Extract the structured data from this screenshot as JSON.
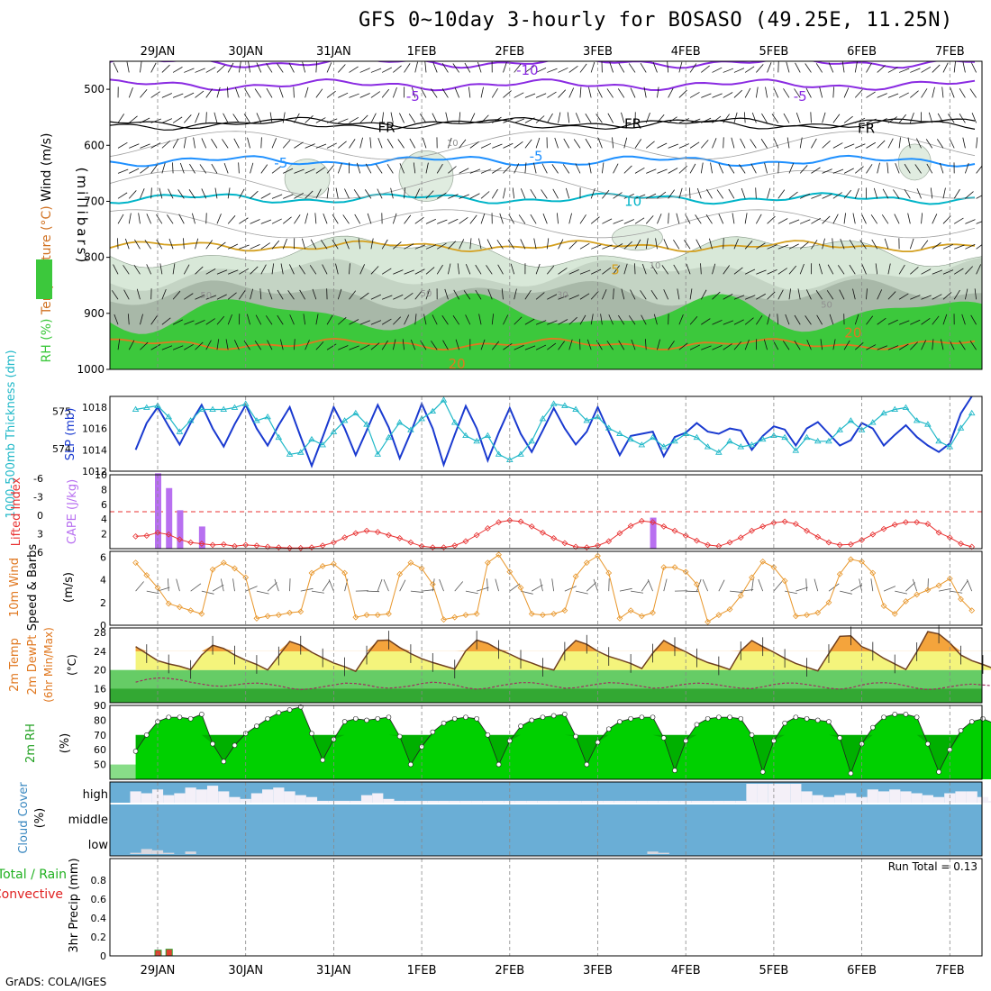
{
  "title": "GFS 0~10day 3-hourly for BOSASO (49.25E, 11.25N)",
  "credit": "GrADS: COLA/IGES",
  "colors": {
    "rh_green": "#3cc83c",
    "rh_light": "#d8e8d8",
    "rh_mid": "#c4d4c4",
    "rh_dark": "#a8b8a8",
    "temp_purple": "#8a2be2",
    "temp_black": "#000000",
    "temp_blue": "#1e90ff",
    "temp_cyan": "#00b4c8",
    "temp_gold": "#d4a020",
    "temp_orange": "#e07820",
    "temp_magenta": "#e0108c",
    "slp": "#1a3ad0",
    "thick": "#20b8c8",
    "lifted": "#e83030",
    "cape": "#b870f0",
    "wind": "#e8962a",
    "temp_fill_orange": "#f4a43c",
    "temp_fill_yellow": "#f4f47c",
    "dewpt_fill": "#40c840",
    "rh2m": "#00d000",
    "cloud": "#6aaed6",
    "cloud_white": "#f4f0f8"
  },
  "chart_data": {
    "type": "meteogram",
    "x_dates": [
      "29JAN",
      "30JAN",
      "31JAN",
      "1FEB",
      "2FEB",
      "3FEB",
      "4FEB",
      "5FEB",
      "6FEB",
      "7FEB"
    ],
    "panels": [
      {
        "name": "upper-air",
        "ylabel_parts": [
          "RH (%)",
          "Temperature (°C)",
          "Wind (m/s)"
        ],
        "axis_title": "(millibars)",
        "ylim": [
          1000,
          450
        ],
        "yticks": [
          500,
          600,
          700,
          800,
          900,
          1000
        ],
        "contour_labels": [
          {
            "text": "-10",
            "day": 4.2,
            "p": 466
          },
          {
            "text": "-5",
            "day": 2.9,
            "p": 513
          },
          {
            "text": "-5",
            "day": 7.3,
            "p": 513
          },
          {
            "text": "FR",
            "day": 2.6,
            "p": 568
          },
          {
            "text": "FR",
            "day": 5.4,
            "p": 562
          },
          {
            "text": "FR",
            "day": 8.05,
            "p": 570
          },
          {
            "text": "-5",
            "day": 1.4,
            "p": 632
          },
          {
            "text": "-5",
            "day": 4.3,
            "p": 620
          },
          {
            "text": "10",
            "day": 5.4,
            "p": 700
          },
          {
            "text": "5",
            "day": 5.2,
            "p": 822
          },
          {
            "text": "20",
            "day": 7.9,
            "p": 935
          },
          {
            "text": "20",
            "day": 3.4,
            "p": 990
          },
          {
            "text": "50",
            "day": 0.55,
            "p": 865
          },
          {
            "text": "50",
            "day": 3.05,
            "p": 862
          },
          {
            "text": "50",
            "day": 7.6,
            "p": 882
          },
          {
            "text": "30",
            "day": 4.6,
            "p": 864
          },
          {
            "text": "10",
            "day": 5.65,
            "p": 812
          },
          {
            "text": "10",
            "day": 3.35,
            "p": 593
          }
        ]
      },
      {
        "name": "thickness-slp",
        "ylabel_left": "1000-500mb Thickness (dm)",
        "ylabel_right": "SLP (mb)",
        "thick_ylim": [
          573.4,
          575.4
        ],
        "thick_ticks": [
          574,
          575
        ],
        "slp_ylim": [
          1012,
          1019
        ],
        "slp_ticks": [
          1012,
          1014,
          1016,
          1018
        ],
        "slp": [
          1014.0,
          1016.5,
          1018.0,
          1016.2,
          1014.5,
          1016.5,
          1018.2,
          1016.0,
          1014.3,
          1016.4,
          1018.2,
          1016.0,
          1014.4,
          1016.3,
          1018.0,
          1015.2,
          1012.5,
          1015.2,
          1018.0,
          1016.0,
          1013.5,
          1015.8,
          1018.2,
          1016.1,
          1013.2,
          1015.6,
          1018.3,
          1016.0,
          1012.6,
          1015.4,
          1018.1,
          1016.0,
          1013.0,
          1015.6,
          1017.9,
          1015.5,
          1013.8,
          1015.8,
          1017.9,
          1016.0,
          1014.5,
          1015.7,
          1018.0,
          1015.7,
          1013.5,
          1015.3,
          1015.5,
          1015.7,
          1013.4,
          1015.2,
          1015.6,
          1016.5,
          1015.7,
          1015.5,
          1016.0,
          1015.8,
          1014.0,
          1015.3,
          1016.2,
          1015.9,
          1014.4,
          1016.0,
          1016.6,
          1015.5,
          1014.4,
          1014.9,
          1016.5,
          1016.0,
          1014.4,
          1015.4,
          1016.3,
          1015.2,
          1014.4,
          1013.8,
          1014.6,
          1017.4,
          1019.0
        ],
        "thick": [
          575.05,
          575.1,
          575.15,
          574.85,
          574.45,
          574.75,
          575.05,
          575.05,
          575.05,
          575.1,
          575.2,
          574.75,
          574.85,
          574.3,
          573.85,
          573.9,
          574.25,
          574.1,
          574.45,
          574.75,
          574.95,
          574.65,
          573.85,
          574.3,
          574.7,
          574.5,
          574.8,
          575.0,
          575.3,
          574.7,
          574.35,
          574.2,
          574.35,
          573.85,
          573.7,
          573.85,
          574.2,
          574.8,
          575.2,
          575.15,
          575.05,
          574.75,
          574.85,
          574.55,
          574.4,
          574.25,
          574.1,
          574.3,
          574.05,
          574.2,
          574.4,
          574.3,
          574.05,
          573.9,
          574.2,
          574.05,
          574.1,
          574.25,
          574.35,
          574.3,
          573.95,
          574.3,
          574.2,
          574.2,
          574.5,
          574.75,
          574.5,
          574.7,
          574.95,
          575.05,
          575.1,
          574.75,
          574.65,
          574.2,
          574.05,
          574.55,
          574.95
        ]
      },
      {
        "name": "lifted-cape",
        "ylabel_left": "Lifted Index",
        "ylabel_right": "CAPE (J/kg)",
        "li_ticks": [
          "-6",
          "-3",
          "0",
          "3",
          "6"
        ],
        "cape_ticks": [
          2,
          4,
          6,
          8,
          10
        ],
        "cape_ylim": [
          0,
          10
        ],
        "lifted_index": [
          4.0,
          3.9,
          3.4,
          3.7,
          4.5,
          5.0,
          5.2,
          5.4,
          5.3,
          5.6,
          5.4,
          5.5,
          5.7,
          5.8,
          5.9,
          5.9,
          5.8,
          5.5,
          5.0,
          4.2,
          3.5,
          3.1,
          3.3,
          3.8,
          4.3,
          5.0,
          5.6,
          5.8,
          5.8,
          5.5,
          4.8,
          3.8,
          2.7,
          1.7,
          1.4,
          1.6,
          2.4,
          3.4,
          4.3,
          5.1,
          5.7,
          5.8,
          5.5,
          4.8,
          3.5,
          2.3,
          1.5,
          1.7,
          2.4,
          3.1,
          3.9,
          4.7,
          5.4,
          5.6,
          5.0,
          4.2,
          3.1,
          2.4,
          1.8,
          1.6,
          2.0,
          3.1,
          4.1,
          5.0,
          5.4,
          5.3,
          4.6,
          3.7,
          2.8,
          2.1,
          1.7,
          1.7,
          2.0,
          3.4,
          4.2,
          5.2,
          5.7
        ],
        "cape": [
          0,
          0,
          10.2,
          8.2,
          5.2,
          0,
          3.0,
          0,
          0,
          0,
          0,
          0,
          0,
          0,
          0,
          0,
          0,
          0,
          0,
          0,
          0,
          0,
          0,
          0,
          0,
          0,
          0,
          0,
          0,
          0,
          0,
          0,
          0,
          0,
          0,
          0,
          0,
          0,
          0,
          0,
          0,
          0,
          0,
          0,
          0,
          0,
          0,
          4.2,
          0,
          0,
          0,
          0,
          0,
          0,
          0,
          0,
          0,
          0,
          0,
          0,
          0,
          0,
          0,
          0,
          0,
          0,
          0,
          0,
          0,
          0,
          0,
          0,
          0,
          0,
          0,
          0,
          0
        ]
      },
      {
        "name": "wind10m",
        "ylabel": "10m Wind Speed & Barbs (m/s)",
        "ylim": [
          0,
          6.5
        ],
        "yticks": [
          0,
          2,
          4,
          6
        ],
        "wind": [
          5.5,
          4.4,
          3.3,
          1.9,
          1.6,
          1.3,
          1.0,
          4.9,
          5.5,
          5.0,
          4.2,
          0.6,
          0.8,
          0.9,
          1.1,
          1.2,
          4.6,
          5.2,
          5.4,
          4.6,
          0.7,
          0.9,
          0.9,
          1.0,
          4.5,
          5.5,
          5.0,
          3.6,
          0.5,
          0.7,
          0.9,
          1.0,
          5.5,
          6.2,
          4.7,
          3.3,
          1.0,
          0.9,
          1.0,
          1.3,
          4.3,
          5.5,
          6.1,
          4.6,
          0.6,
          1.3,
          0.8,
          1.1,
          5.1,
          5.1,
          4.7,
          3.6,
          0.3,
          0.9,
          1.4,
          2.6,
          4.2,
          5.6,
          5.1,
          3.9,
          0.8,
          0.9,
          1.1,
          2.0,
          4.5,
          5.8,
          5.6,
          4.6,
          1.7,
          1.0,
          2.1,
          2.7,
          3.1,
          3.5,
          4.1,
          2.3,
          1.3
        ]
      },
      {
        "name": "temp-dewpt",
        "ylabel_parts": [
          "2m Temp",
          "2m DewPt",
          "(6hr Min/Max)"
        ],
        "unit": "(°C)",
        "ylim": [
          13,
          29
        ],
        "yticks": [
          16,
          20,
          24,
          28
        ],
        "temp": [
          25.0,
          23.5,
          22.0,
          21.3,
          20.8,
          20.1,
          23.2,
          25.3,
          24.6,
          23.2,
          22.1,
          21.2,
          20.0,
          23.0,
          26.1,
          25.3,
          23.8,
          22.6,
          21.5,
          20.7,
          19.7,
          23.2,
          26.3,
          26.4,
          24.8,
          23.5,
          22.4,
          21.6,
          20.9,
          20.2,
          24.1,
          26.4,
          25.7,
          24.4,
          23.4,
          22.3,
          21.5,
          20.6,
          20.0,
          24.0,
          26.3,
          25.5,
          24.0,
          22.9,
          22.2,
          21.4,
          20.3,
          23.6,
          26.3,
          25.0,
          23.9,
          22.6,
          21.6,
          20.9,
          20.1,
          24.1,
          26.3,
          25.0,
          23.8,
          22.5,
          21.4,
          20.6,
          19.8,
          23.5,
          27.2,
          27.3,
          25.0,
          24.0,
          22.5,
          21.3,
          20.1,
          23.9,
          28.2,
          27.7,
          25.8,
          23.2,
          22.0,
          21.2,
          20.3,
          20.2
        ],
        "dewpt": [
          17.4,
          18.0,
          18.3,
          18.2,
          17.9,
          17.4,
          17.0,
          16.6,
          16.5,
          16.8,
          17.1,
          17.2,
          17.0,
          16.6,
          16.1,
          15.8,
          16.0,
          16.4,
          16.8,
          17.2,
          17.1,
          16.8,
          16.3,
          16.1,
          16.3,
          16.6,
          17.1,
          17.4,
          17.2,
          16.8,
          16.2,
          15.9,
          16.1,
          16.6,
          17.0,
          17.3,
          17.3,
          17.0,
          16.5,
          16.1,
          16.2,
          16.6,
          17.0,
          17.3,
          17.2,
          16.9,
          16.5,
          16.1,
          16.2,
          16.6,
          17.0,
          17.2,
          17.1,
          16.8,
          16.4,
          16.1,
          16.0,
          16.4,
          16.9,
          17.2,
          17.2,
          16.9,
          16.5,
          16.1,
          15.9,
          16.2,
          16.8,
          17.2,
          17.3,
          17.1,
          16.6,
          16.1,
          15.8,
          16.0,
          16.4,
          16.8,
          17.0,
          16.8,
          16.6,
          16.4
        ]
      },
      {
        "name": "rh2m",
        "ylabel": "2m RH",
        "unit": "(%)",
        "ylim": [
          40,
          90
        ],
        "yticks": [
          50,
          60,
          70,
          80,
          90
        ],
        "rh": [
          59,
          70,
          79,
          82,
          82,
          81,
          84,
          64,
          52,
          63,
          71,
          76,
          81,
          85,
          87,
          89,
          71,
          53,
          67,
          79,
          81,
          80,
          81,
          82,
          69,
          50,
          62,
          72,
          78,
          81,
          82,
          81,
          70,
          50,
          66,
          76,
          80,
          82,
          83,
          84,
          69,
          50,
          65,
          74,
          79,
          81,
          82,
          82,
          68,
          46,
          66,
          77,
          81,
          82,
          82,
          81,
          70,
          45,
          66,
          78,
          82,
          81,
          80,
          79,
          68,
          44,
          64,
          75,
          82,
          84,
          84,
          82,
          64,
          45,
          60,
          73,
          79,
          81,
          78,
          73,
          54
        ]
      },
      {
        "name": "cloud-cover",
        "ylabel": "Cloud Cover (%)",
        "levels": [
          "high",
          "middle",
          "low"
        ],
        "high_white": [
          0.6,
          0.5,
          0.7,
          0.4,
          0.5,
          0.8,
          0.7,
          0.9,
          0.6,
          0.3,
          0.2,
          0.5,
          0.7,
          0.8,
          0.6,
          0.4,
          0.3,
          0.1,
          0.1,
          0.1,
          0.1,
          0.4,
          0.5,
          0.2,
          0.1,
          0.1,
          0.1,
          0.1,
          0.1,
          0.1,
          0.1,
          0.1,
          0.1,
          0.1,
          0.1,
          0.1,
          0.1,
          0.1,
          0.1,
          0.1,
          0.1,
          0.1,
          0.1,
          0.1,
          0.1,
          0.1,
          0.1,
          0.1,
          0.1,
          0.1,
          0.1,
          0.1,
          0.1,
          0.1,
          0.1,
          0.1,
          1.0,
          1.0,
          1.0,
          1.0,
          1.0,
          0.6,
          0.4,
          0.3,
          0.4,
          0.5,
          0.3,
          0.7,
          0.6,
          0.7,
          0.6,
          0.5,
          0.4,
          0.3,
          0.5,
          0.6,
          0.6,
          0.3,
          0.1,
          0.3,
          0.1
        ],
        "low_white": [
          0.1,
          0.4,
          0.3,
          0.1,
          0.0,
          0.2,
          0.0,
          0.0,
          0.0,
          0.0,
          0.0,
          0.0,
          0.0,
          0.0,
          0.0,
          0.0,
          0.0,
          0.0,
          0.0,
          0.0,
          0.0,
          0.0,
          0.0,
          0.0,
          0.0,
          0.0,
          0.0,
          0.0,
          0.0,
          0.0,
          0.0,
          0.0,
          0.0,
          0.0,
          0.0,
          0.0,
          0.0,
          0.0,
          0.0,
          0.0,
          0.0,
          0.0,
          0.0,
          0.0,
          0.0,
          0.0,
          0.0,
          0.2,
          0.1,
          0.0,
          0.0,
          0.0,
          0.0,
          0.0,
          0.0,
          0.0,
          0.0,
          0.0,
          0.0,
          0.0,
          0.0,
          0.0,
          0.0,
          0.0,
          0.0,
          0.0,
          0.0,
          0.0,
          0.0,
          0.0,
          0.0,
          0.0,
          0.0,
          0.0,
          0.0,
          0.0,
          0.0,
          0.0,
          0.0,
          0.0,
          0.0
        ]
      },
      {
        "name": "precip",
        "ylabel_left": "Total / Rain Convective",
        "ylabel_right": "3hr Precip (mm)",
        "run_total": "Run Total = 0.13",
        "ylim": [
          0,
          1
        ],
        "yticks": [
          0,
          0.2,
          0.4,
          0.6,
          0.8
        ],
        "precip": [
          0,
          0,
          0.06,
          0.07
        ]
      }
    ]
  }
}
